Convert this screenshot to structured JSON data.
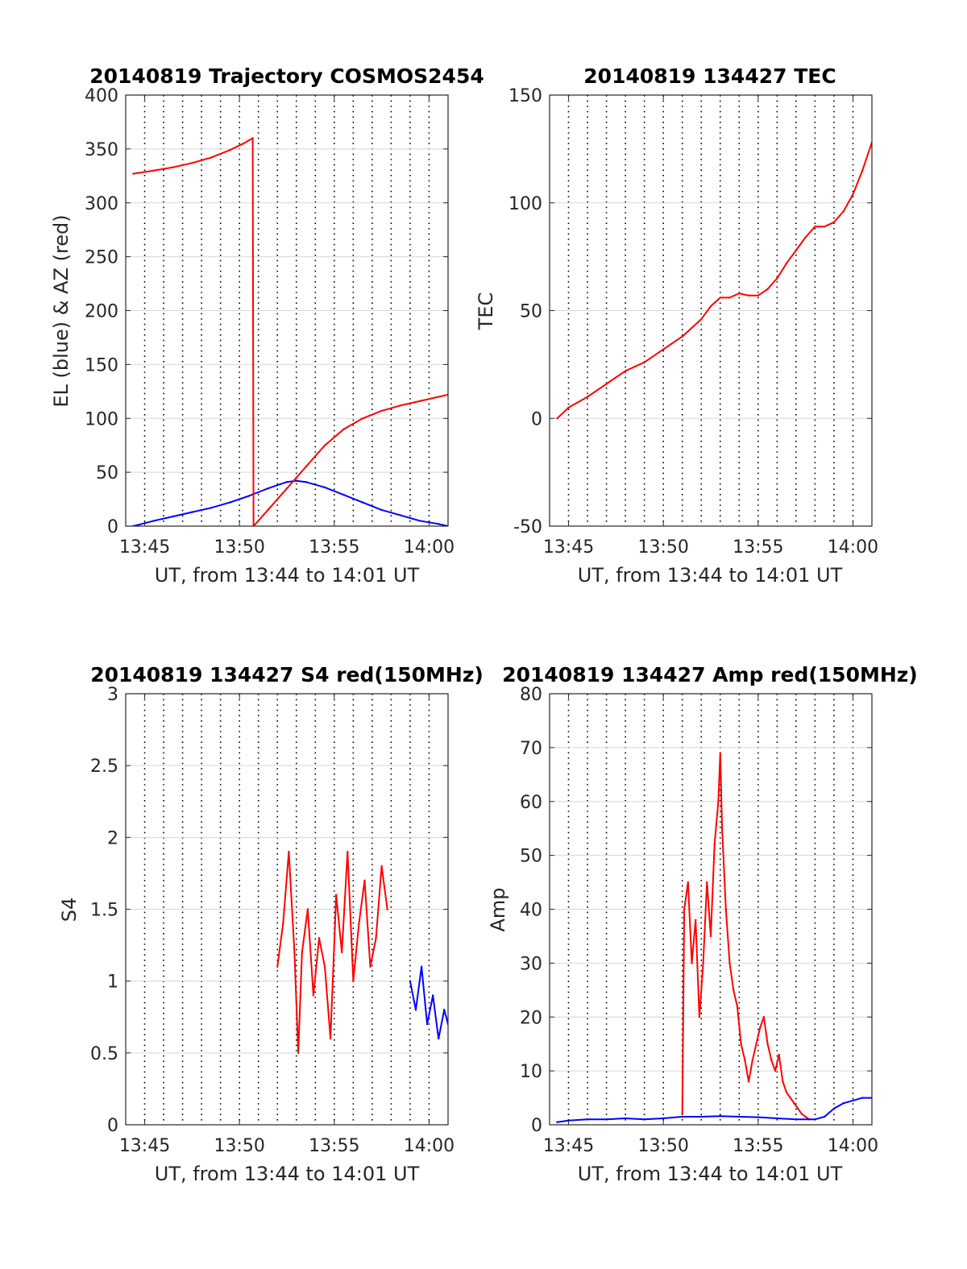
{
  "chart_data": [
    {
      "type": "line",
      "title": "20140819 Trajectory COSMOS2454",
      "xlabel": "UT, from 13:44 to 14:01 UT",
      "ylabel": "EL (blue) & AZ (red)",
      "xlim": [
        44.0,
        61.0
      ],
      "ylim": [
        0,
        400
      ],
      "xticks": [
        45,
        50,
        55,
        60
      ],
      "xticklabels": [
        "13:45",
        "13:50",
        "13:55",
        "14:00"
      ],
      "yticks": [
        0,
        50,
        100,
        150,
        200,
        250,
        300,
        350,
        400
      ],
      "yticklabels": [
        "0",
        "50",
        "100",
        "150",
        "200",
        "250",
        "300",
        "350",
        "400"
      ],
      "grid": true,
      "series": [
        {
          "name": "EL",
          "color": "#0000ff",
          "x": [
            44.4,
            45.5,
            46.5,
            47.5,
            48.5,
            49.5,
            50.5,
            51.5,
            52.5,
            53.0,
            53.5,
            54.5,
            55.5,
            56.5,
            57.5,
            58.5,
            59.5,
            60.5,
            61.0
          ],
          "y": [
            0,
            5,
            9,
            13,
            17,
            22,
            28,
            35,
            41,
            42,
            41,
            36,
            29,
            22,
            15,
            10,
            5,
            2,
            0
          ]
        },
        {
          "name": "AZ",
          "color": "#ff0000",
          "x": [
            44.4,
            45.5,
            46.5,
            47.5,
            48.5,
            49.5,
            50.2,
            50.7,
            50.72,
            50.74,
            51.5,
            52.5,
            53.0,
            53.5,
            54.5,
            55.5,
            56.5,
            57.5,
            58.5,
            59.5,
            61.0
          ],
          "y": [
            327,
            330,
            333,
            337,
            342,
            349,
            355,
            360,
            180,
            0,
            15,
            35,
            45,
            55,
            75,
            90,
            100,
            107,
            112,
            116,
            122
          ]
        }
      ]
    },
    {
      "type": "line",
      "title": "20140819 134427 TEC",
      "xlabel": "UT, from 13:44 to 14:01 UT",
      "ylabel": "TEC",
      "xlim": [
        44.0,
        61.0
      ],
      "ylim": [
        -50,
        150
      ],
      "xticks": [
        45,
        50,
        55,
        60
      ],
      "xticklabels": [
        "13:45",
        "13:50",
        "13:55",
        "14:00"
      ],
      "yticks": [
        -50,
        0,
        50,
        100,
        150
      ],
      "yticklabels": [
        "-50",
        "0",
        "50",
        "100",
        "150"
      ],
      "grid": true,
      "series": [
        {
          "name": "TEC",
          "color": "#ff0000",
          "x": [
            44.4,
            45.0,
            46.0,
            47.0,
            48.0,
            49.0,
            50.0,
            51.0,
            52.0,
            52.5,
            53.0,
            53.5,
            54.0,
            54.5,
            55.0,
            55.5,
            56.0,
            56.5,
            57.0,
            57.5,
            58.0,
            58.5,
            59.0,
            59.5,
            60.0,
            60.5,
            61.0
          ],
          "y": [
            0,
            5,
            10,
            16,
            22,
            26,
            32,
            38,
            46,
            52,
            56,
            56,
            58,
            57,
            57,
            60,
            65,
            72,
            78,
            84,
            89,
            89,
            91,
            96,
            104,
            115,
            128
          ]
        }
      ]
    },
    {
      "type": "line",
      "title": "20140819 134427 S4 red(150MHz)",
      "xlabel": "UT, from 13:44 to 14:01 UT",
      "ylabel": "S4",
      "xlim": [
        44.0,
        61.0
      ],
      "ylim": [
        0,
        3
      ],
      "xticks": [
        45,
        50,
        55,
        60
      ],
      "xticklabels": [
        "13:45",
        "13:50",
        "13:55",
        "14:00"
      ],
      "yticks": [
        0,
        0.5,
        1,
        1.5,
        2,
        2.5,
        3
      ],
      "yticklabels": [
        "0",
        "0.5",
        "1",
        "1.5",
        "2",
        "2.5",
        "3"
      ],
      "grid": true,
      "series": [
        {
          "name": "red",
          "color": "#ff0000",
          "x": [
            52.0,
            52.3,
            52.6,
            52.9,
            53.1,
            53.3,
            53.6,
            53.9,
            54.2,
            54.5,
            54.8,
            55.1,
            55.4,
            55.7,
            56.0,
            56.3,
            56.6,
            56.9,
            57.2,
            57.5,
            57.8
          ],
          "y": [
            1.1,
            1.4,
            1.9,
            1.2,
            0.5,
            1.2,
            1.5,
            0.9,
            1.3,
            1.1,
            0.6,
            1.6,
            1.2,
            1.9,
            1.0,
            1.4,
            1.7,
            1.1,
            1.3,
            1.8,
            1.5
          ]
        },
        {
          "name": "blue",
          "color": "#0000ff",
          "x": [
            59.0,
            59.3,
            59.6,
            59.9,
            60.2,
            60.5,
            60.8,
            61.0
          ],
          "y": [
            1.0,
            0.8,
            1.1,
            0.7,
            0.9,
            0.6,
            0.8,
            0.7
          ]
        }
      ]
    },
    {
      "type": "line",
      "title": "20140819 134427 Amp red(150MHz)",
      "xlabel": "UT, from 13:44 to 14:01 UT",
      "ylabel": "Amp",
      "xlim": [
        44.0,
        61.0
      ],
      "ylim": [
        0,
        80
      ],
      "xticks": [
        45,
        50,
        55,
        60
      ],
      "xticklabels": [
        "13:45",
        "13:50",
        "13:55",
        "14:00"
      ],
      "yticks": [
        0,
        10,
        20,
        30,
        40,
        50,
        60,
        70,
        80
      ],
      "yticklabels": [
        "0",
        "10",
        "20",
        "30",
        "40",
        "50",
        "60",
        "70",
        "80"
      ],
      "grid": true,
      "series": [
        {
          "name": "red",
          "color": "#ff0000",
          "x": [
            51.0,
            51.1,
            51.3,
            51.5,
            51.7,
            51.9,
            52.1,
            52.3,
            52.5,
            52.7,
            52.9,
            53.0,
            53.1,
            53.3,
            53.5,
            53.7,
            53.9,
            54.1,
            54.3,
            54.5,
            54.7,
            54.9,
            55.1,
            55.3,
            55.5,
            55.7,
            55.9,
            56.1,
            56.3,
            56.5,
            56.7,
            56.9,
            57.1,
            57.3,
            57.5,
            57.7
          ],
          "y": [
            2,
            40,
            45,
            30,
            38,
            20,
            30,
            45,
            35,
            52,
            60,
            69,
            55,
            40,
            30,
            25,
            22,
            15,
            12,
            8,
            12,
            15,
            18,
            20,
            15,
            12,
            10,
            13,
            8,
            6,
            5,
            4,
            3,
            2,
            1.5,
            1
          ]
        },
        {
          "name": "blue",
          "color": "#0000ff",
          "x": [
            44.4,
            45.0,
            46.0,
            47.0,
            48.0,
            49.0,
            50.0,
            51.0,
            52.0,
            53.0,
            54.0,
            55.0,
            56.0,
            57.0,
            58.0,
            58.5,
            59.0,
            59.5,
            60.0,
            60.5,
            61.0
          ],
          "y": [
            0.5,
            0.8,
            1.0,
            1.0,
            1.2,
            1.0,
            1.2,
            1.5,
            1.5,
            1.6,
            1.5,
            1.4,
            1.2,
            1.0,
            1.0,
            1.5,
            3,
            4,
            4.5,
            5,
            5
          ]
        }
      ]
    }
  ]
}
